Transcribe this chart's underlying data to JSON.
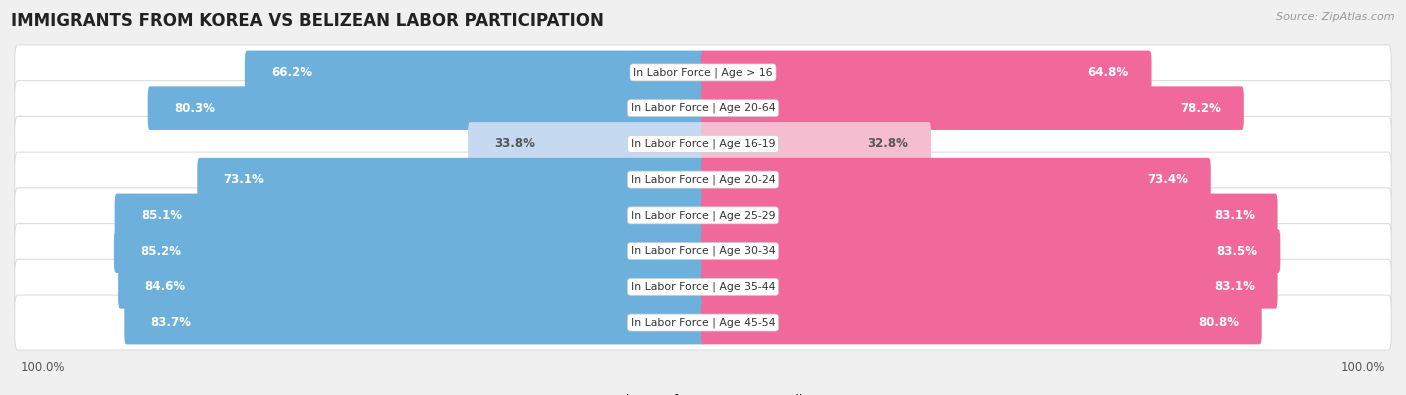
{
  "title": "IMMIGRANTS FROM KOREA VS BELIZEAN LABOR PARTICIPATION",
  "source": "Source: ZipAtlas.com",
  "categories": [
    "In Labor Force | Age > 16",
    "In Labor Force | Age 20-64",
    "In Labor Force | Age 16-19",
    "In Labor Force | Age 20-24",
    "In Labor Force | Age 25-29",
    "In Labor Force | Age 30-34",
    "In Labor Force | Age 35-44",
    "In Labor Force | Age 45-54"
  ],
  "korea_values": [
    66.2,
    80.3,
    33.8,
    73.1,
    85.1,
    85.2,
    84.6,
    83.7
  ],
  "belizean_values": [
    64.8,
    78.2,
    32.8,
    73.4,
    83.1,
    83.5,
    83.1,
    80.8
  ],
  "korea_color": "#6EB0DC",
  "korea_color_light": "#C5DAF0",
  "belizean_color": "#F0699A",
  "belizean_color_light": "#F5BDD0",
  "bg_color": "#F0F0F0",
  "row_bg": "#FFFFFF",
  "row_border": "#DDDDDD",
  "bar_height": 0.62,
  "max_value": 100.0,
  "legend_korea": "Immigrants from Korea",
  "legend_belizean": "Belizean",
  "title_fontsize": 12,
  "value_fontsize": 8.5,
  "cat_fontsize": 7.8,
  "bottom_label": "100.0%"
}
